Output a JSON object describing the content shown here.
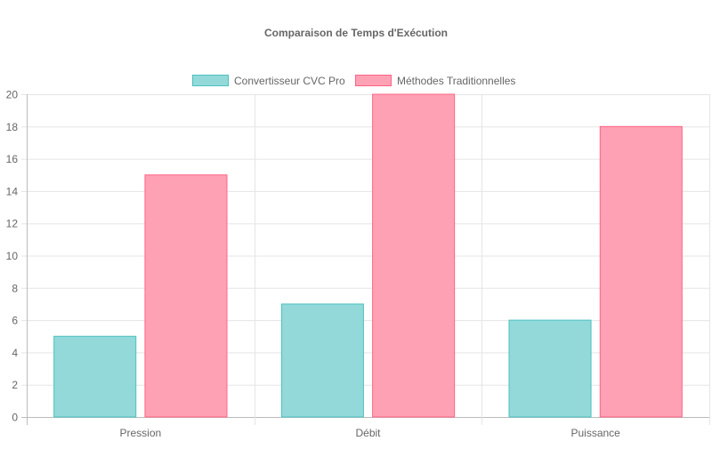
{
  "chart_data": {
    "type": "bar",
    "title": "Comparaison de Temps d'Exécution",
    "categories": [
      "Pression",
      "Débit",
      "Puissance"
    ],
    "series": [
      {
        "name": "Convertisseur CVC Pro",
        "values": [
          5,
          7,
          6
        ],
        "color": "#4bc0c0",
        "fill": "#93d9d9"
      },
      {
        "name": "Méthodes Traditionnelles",
        "values": [
          15,
          20,
          18
        ],
        "color": "#ff6384",
        "fill": "#ffa1b5"
      }
    ],
    "ylim": [
      0,
      20
    ],
    "yticks": [
      0,
      2,
      4,
      6,
      8,
      10,
      12,
      14,
      16,
      18,
      20
    ],
    "xlabel": "",
    "ylabel": "",
    "grid": true,
    "legend": "top"
  }
}
